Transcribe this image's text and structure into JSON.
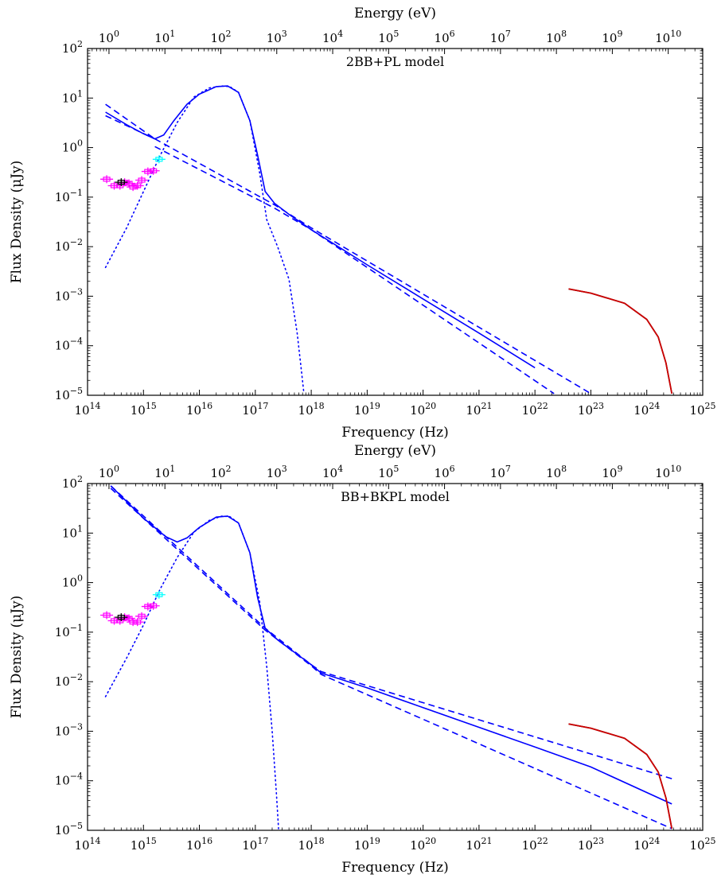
{
  "chart_data": [
    {
      "type": "line",
      "title": "2BB+PL model",
      "xlabel": "Frequency (Hz)",
      "xlabel_top": "Energy (eV)",
      "ylabel": "Flux Density (μJy)",
      "xscale": "log",
      "yscale": "log",
      "xlim": [
        100000000000000.0,
        1e+25
      ],
      "ylim": [
        1e-05,
        100
      ],
      "x_ticks": [
        "10^14",
        "10^15",
        "10^16",
        "10^17",
        "10^18",
        "10^19",
        "10^20",
        "10^21",
        "10^22",
        "10^23",
        "10^24",
        "10^25"
      ],
      "y_ticks": [
        "10^-5",
        "10^-4",
        "10^-3",
        "10^-2",
        "10^-1",
        "10^0",
        "10^1",
        "10^2"
      ],
      "top_ticks": [
        "10^0",
        "10^1",
        "10^2",
        "10^3",
        "10^4",
        "10^5",
        "10^6",
        "10^7",
        "10^8",
        "10^9",
        "10^10"
      ],
      "series": [
        {
          "style": "solid",
          "color": "#0000ff",
          "x": [
            210000000000000.0,
            500000000000000.0,
            1000000000000000.0,
            1600000000000000.0,
            2300000000000000.0,
            3500000000000000.0,
            6000000000000000.0,
            1e+16,
            2e+16,
            3.2e+16,
            5e+16,
            8e+16,
            1.1e+17,
            1.5e+17,
            2.2e+17,
            4e+17,
            1e+18,
            1e+19,
            1e+20,
            1e+21,
            1e+22
          ],
          "y": [
            5.2,
            2.9,
            1.9,
            1.5,
            1.8,
            3.5,
            7.5,
            12,
            17,
            17.5,
            13,
            3.5,
            0.7,
            0.13,
            0.075,
            0.045,
            0.022,
            0.0043,
            0.00088,
            0.00018,
            3.6e-05
          ]
        },
        {
          "style": "dashed",
          "color": "#0000ff",
          "x": [
            210000000000000.0,
            1600000000000000.0
          ],
          "y": [
            7.5,
            1.5
          ]
        },
        {
          "style": "dashed",
          "color": "#0000ff",
          "x": [
            210000000000000.0,
            1600000000000000.0
          ],
          "y": [
            4.4,
            1.5
          ]
        },
        {
          "style": "dashed",
          "color": "#0000ff",
          "x": [
            1600000000000000.0,
            2.2e+17,
            1e+18,
            1e+23
          ],
          "y": [
            1.5,
            0.07,
            0.024,
            1.08e-05
          ]
        },
        {
          "style": "dashed",
          "color": "#0000ff",
          "x": [
            1600000000000000.0,
            2.2e+17,
            1e+18,
            2.2e+22
          ],
          "y": [
            1.05,
            0.06,
            0.022,
            1.08e-05
          ]
        },
        {
          "style": "dotted",
          "color": "#0000ff",
          "x": [
            210000000000000.0,
            500000000000000.0,
            1000000000000000.0,
            2000000000000000.0,
            4000000000000000.0,
            8000000000000000.0,
            1.5e+16,
            2.5e+16,
            3.5e+16,
            5e+16,
            8e+16,
            1.2e+17,
            1.6e+17,
            2.5e+17,
            4e+17,
            5.6e+17,
            6.6e+17,
            7.4e+17
          ],
          "y": [
            0.0038,
            0.024,
            0.13,
            0.7,
            3.2,
            10.5,
            16,
            17.5,
            17,
            13,
            3.5,
            0.3,
            0.035,
            0.01,
            0.0022,
            0.00018,
            3.5e-05,
            1.08e-05
          ]
        },
        {
          "style": "solid",
          "color": "#000000",
          "x": [
            4e+22,
            1e+23,
            4e+23,
            1e+24,
            1.6e+24,
            2.2e+24,
            2.8e+24
          ],
          "y": [
            0.0014,
            0.00115,
            0.00072,
            0.00034,
            0.00015,
            4.5e-05,
            1.08e-05
          ]
        },
        {
          "style": "solid",
          "color": "#cc0000",
          "x": [
            4e+22,
            1e+23,
            4e+23,
            1e+24,
            1.6e+24,
            2.2e+24,
            2.8e+24
          ],
          "y": [
            0.0014,
            0.00115,
            0.00072,
            0.00034,
            0.00015,
            4.5e-05,
            1.08e-05
          ]
        },
        {
          "style": "points",
          "color": "#ff00ff",
          "x": [
            220000000000000.0,
            300000000000000.0,
            380000000000000.0,
            460000000000000.0,
            550000000000000.0,
            650000000000000.0,
            780000000000000.0,
            930000000000000.0,
            1200000000000000.0,
            1500000000000000.0
          ],
          "y": [
            0.23,
            0.17,
            0.17,
            0.2,
            0.19,
            0.16,
            0.17,
            0.22,
            0.33,
            0.34
          ]
        },
        {
          "style": "points",
          "color": "#000000",
          "x": [
            400000000000000.0
          ],
          "y": [
            0.2
          ]
        },
        {
          "style": "points",
          "color": "#00ffff",
          "x": [
            1900000000000000.0
          ],
          "y": [
            0.58
          ]
        }
      ]
    },
    {
      "type": "line",
      "title": "BB+BKPL model",
      "xlabel": "Frequency (Hz)",
      "xlabel_top": "Energy (eV)",
      "ylabel": "Flux Density (μJy)",
      "xscale": "log",
      "yscale": "log",
      "xlim": [
        100000000000000.0,
        1e+25
      ],
      "ylim": [
        1e-05,
        100
      ],
      "x_ticks": [
        "10^14",
        "10^15",
        "10^16",
        "10^17",
        "10^18",
        "10^19",
        "10^20",
        "10^21",
        "10^22",
        "10^23",
        "10^24",
        "10^25"
      ],
      "y_ticks": [
        "10^-5",
        "10^-4",
        "10^-3",
        "10^-2",
        "10^-1",
        "10^0",
        "10^1",
        "10^2"
      ],
      "top_ticks": [
        "10^0",
        "10^1",
        "10^2",
        "10^3",
        "10^4",
        "10^5",
        "10^6",
        "10^7",
        "10^8",
        "10^9",
        "10^10"
      ],
      "series": [
        {
          "style": "solid",
          "color": "#0000ff",
          "x": [
            260000000000000.0,
            1000000000000000.0,
            2500000000000000.0,
            4000000000000000.0,
            6000000000000000.0,
            1e+16,
            2e+16,
            3.2e+16,
            5e+16,
            8e+16,
            1.1e+17,
            1.5e+17,
            2.5e+17,
            1e+18,
            1.5e+18,
            1e+19,
            1e+20,
            1e+21,
            1e+22,
            1e+23,
            2.8e+24
          ],
          "y": [
            90,
            20,
            8.5,
            6.6,
            8,
            13,
            21,
            22,
            16,
            4,
            0.5,
            0.12,
            0.07,
            0.022,
            0.015,
            0.0075,
            0.003,
            0.0012,
            0.00048,
            0.00019,
            3.4e-05
          ]
        },
        {
          "style": "dashed",
          "color": "#0000ff",
          "x": [
            260000000000000.0,
            1.5e+17,
            1e+18,
            1.5e+18,
            2.8e+24
          ],
          "y": [
            90,
            0.12,
            0.022,
            0.016,
            0.00011
          ]
        },
        {
          "style": "dashed",
          "color": "#0000ff",
          "x": [
            260000000000000.0,
            1.5e+17,
            1e+18,
            1.5e+18,
            2.8e+24
          ],
          "y": [
            80,
            0.11,
            0.021,
            0.014,
            1.08e-05
          ]
        },
        {
          "style": "dotted",
          "color": "#0000ff",
          "x": [
            210000000000000.0,
            500000000000000.0,
            1000000000000000.0,
            2000000000000000.0,
            4000000000000000.0,
            8000000000000000.0,
            1.5e+16,
            2.5e+16,
            3.5e+16,
            5e+16,
            8e+16,
            1.2e+17,
            1.6e+17,
            2e+17,
            2.4e+17,
            2.6e+17
          ],
          "y": [
            0.005,
            0.03,
            0.14,
            0.75,
            3.2,
            10.5,
            18,
            22,
            21.5,
            16,
            4,
            0.4,
            0.02,
            0.001,
            5e-05,
            1.08e-05
          ]
        },
        {
          "style": "solid",
          "color": "#000000",
          "x": [
            4e+22,
            1e+23,
            4e+23,
            1e+24,
            1.6e+24,
            2.2e+24,
            2.8e+24
          ],
          "y": [
            0.0014,
            0.00115,
            0.00072,
            0.00034,
            0.00015,
            4.5e-05,
            1.08e-05
          ]
        },
        {
          "style": "solid",
          "color": "#cc0000",
          "x": [
            4e+22,
            1e+23,
            4e+23,
            1e+24,
            1.6e+24,
            2.2e+24,
            2.8e+24
          ],
          "y": [
            0.0014,
            0.00115,
            0.00072,
            0.00034,
            0.00015,
            4.5e-05,
            1.08e-05
          ]
        },
        {
          "style": "points",
          "color": "#ff00ff",
          "x": [
            220000000000000.0,
            300000000000000.0,
            380000000000000.0,
            460000000000000.0,
            550000000000000.0,
            650000000000000.0,
            780000000000000.0,
            930000000000000.0,
            1200000000000000.0,
            1500000000000000.0
          ],
          "y": [
            0.22,
            0.17,
            0.17,
            0.2,
            0.19,
            0.16,
            0.16,
            0.21,
            0.33,
            0.34
          ]
        },
        {
          "style": "points",
          "color": "#000000",
          "x": [
            400000000000000.0
          ],
          "y": [
            0.2
          ]
        },
        {
          "style": "points",
          "color": "#00ffff",
          "x": [
            1900000000000000.0
          ],
          "y": [
            0.57
          ]
        }
      ]
    }
  ]
}
